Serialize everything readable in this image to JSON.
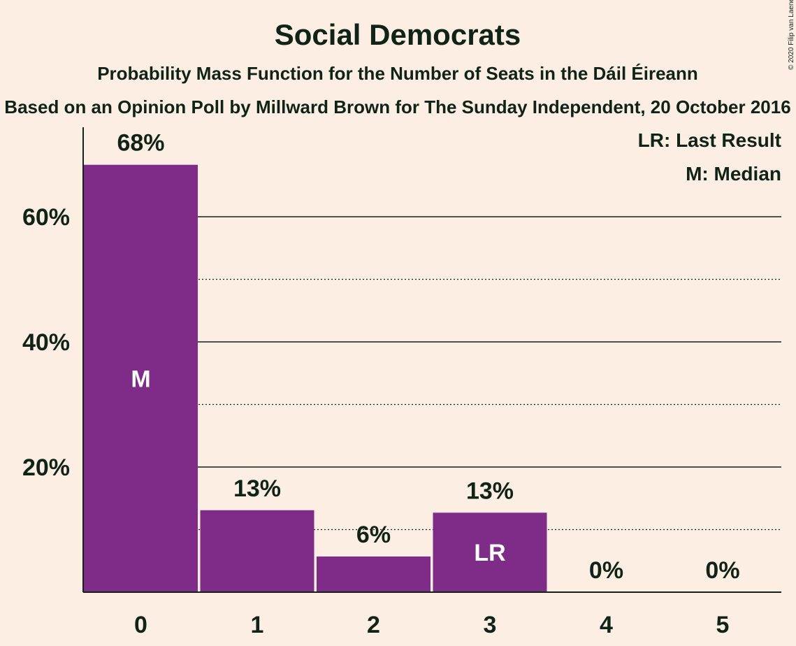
{
  "chart_data": {
    "type": "bar",
    "title": "Social Democrats",
    "subtitle": "Probability Mass Function for the Number of Seats in the Dáil Éireann",
    "subtitle2": "Based on an Opinion Poll by Millward Brown for The Sunday Independent, 20 October 2016",
    "copyright": "© 2020 Filip van Laenen",
    "categories": [
      "0",
      "1",
      "2",
      "3",
      "4",
      "5"
    ],
    "values": [
      68.3,
      13.1,
      5.7,
      12.7,
      0,
      0
    ],
    "value_labels": [
      "68%",
      "13%",
      "6%",
      "13%",
      "0%",
      "0%"
    ],
    "bar_markers": [
      "M",
      "",
      "",
      "LR",
      "",
      ""
    ],
    "y_ticks": [
      20,
      40,
      60
    ],
    "y_tick_labels": [
      "20%",
      "40%",
      "60%"
    ],
    "y_dotted_gridlines": [
      10,
      30,
      50
    ],
    "ylim": [
      0,
      74
    ],
    "legend": [
      "LR: Last Result",
      "M: Median"
    ],
    "legend_position": "top-right",
    "bar_color": "#7E2C88",
    "background_color": "#FDEEE3",
    "text_color": "#0f2417"
  }
}
